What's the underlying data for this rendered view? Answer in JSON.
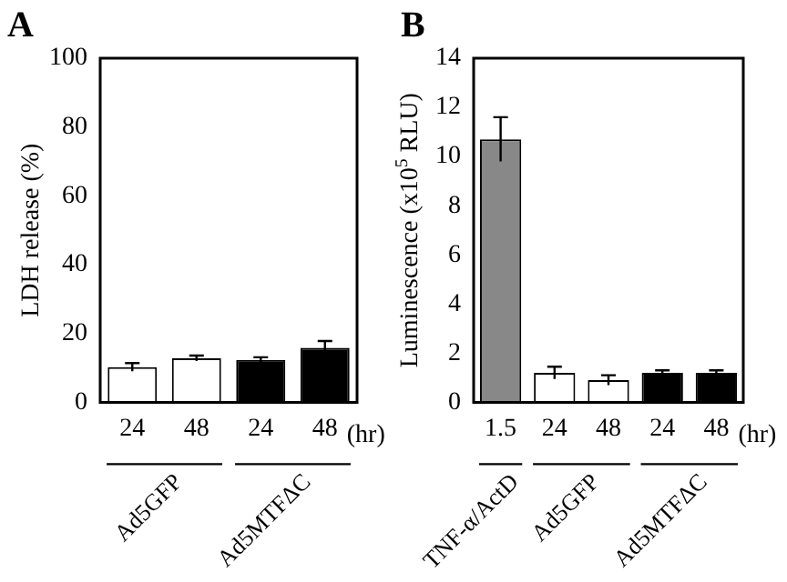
{
  "chart_data": [
    {
      "type": "bar",
      "title": "A",
      "ylabel": "LDH release (%)",
      "categories": [
        "24",
        "48",
        "24",
        "48"
      ],
      "values": [
        10.2,
        12.8,
        12.3,
        15.8
      ],
      "errors": [
        1.2,
        0.8,
        0.8,
        2
      ],
      "colors": [
        "#ffffff",
        "#ffffff",
        "#000000",
        "#000000"
      ],
      "ylim": [
        0,
        100
      ],
      "yticks": [
        0,
        20,
        40,
        60,
        80,
        100
      ],
      "grid": false,
      "legend": false,
      "annotations": [
        "(hr)",
        "Ad5GFP",
        "Ad5MTFΔC"
      ]
    },
    {
      "type": "bar",
      "title": "B",
      "ylabel": "Luminescence (x10$^{5}$ RLU)",
      "categories": [
        "1.5",
        "24",
        "48",
        "24",
        "48"
      ],
      "values": [
        10.7,
        1.2,
        0.9,
        1.2,
        1.2
      ],
      "errors": [
        0.9,
        0.25,
        0.2,
        0.1,
        0.1
      ],
      "colors": [
        "#888888",
        "#ffffff",
        "#ffffff",
        "#000000",
        "#000000"
      ],
      "ylim": [
        0,
        14
      ],
      "yticks": [
        0,
        2,
        4,
        6,
        8,
        10,
        12,
        14
      ],
      "grid": false,
      "legend": false,
      "annotations": [
        "(hr)",
        "TNF-α/ActD",
        "Ad5GFP",
        "Ad5MTFΔC"
      ]
    }
  ]
}
